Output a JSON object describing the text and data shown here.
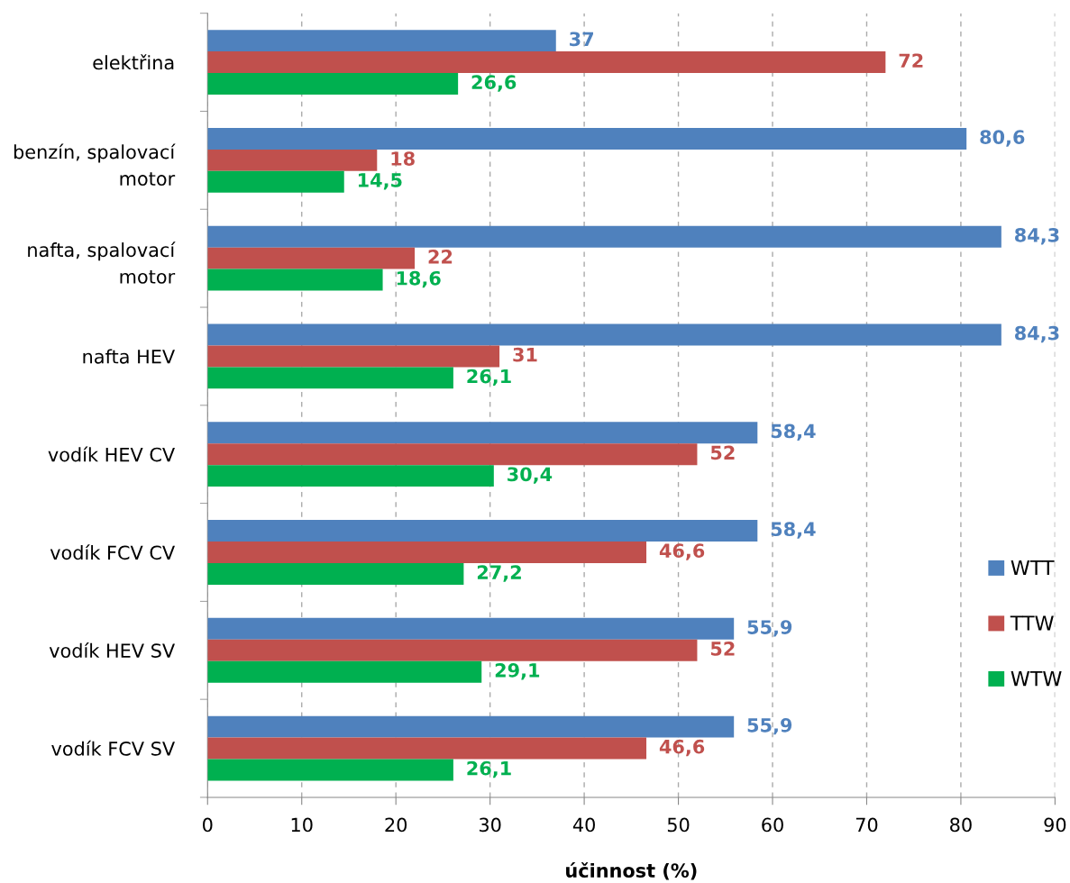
{
  "chart_data": {
    "type": "bar",
    "orientation": "horizontal",
    "xlabel": "účinnost (%)",
    "categories": [
      "elektřina",
      "benzín, spalovací\nmotor",
      "nafta, spalovací\nmotor",
      "nafta HEV",
      "vodík HEV CV",
      "vodík FCV CV",
      "vodík HEV SV",
      "vodík FCV SV"
    ],
    "series": [
      {
        "name": "WTT",
        "color": "#4f81bd",
        "values": [
          37,
          80.6,
          84.3,
          84.3,
          58.4,
          58.4,
          55.9,
          55.9
        ],
        "value_labels": [
          "37",
          "80,6",
          "84,3",
          "84,3",
          "58,4",
          "58,4",
          "55,9",
          "55,9"
        ]
      },
      {
        "name": "TTW",
        "color": "#c0504d",
        "values": [
          72,
          18,
          22,
          31,
          52,
          46.6,
          52,
          46.6
        ],
        "value_labels": [
          "72",
          "18",
          "22",
          "31",
          "52",
          "46,6",
          "52",
          "46,6"
        ]
      },
      {
        "name": "WTW",
        "color": "#00b050",
        "values": [
          26.6,
          14.5,
          18.6,
          26.1,
          30.4,
          27.2,
          29.1,
          26.1
        ],
        "value_labels": [
          "26,6",
          "14,5",
          "18,6",
          "26,1",
          "30,4",
          "27,2",
          "29,1",
          "26,1"
        ]
      }
    ],
    "xlim": [
      0,
      90
    ],
    "xticks": [
      0,
      10,
      20,
      30,
      40,
      50,
      60,
      70,
      80,
      90
    ],
    "grid": "x",
    "legend": "right"
  }
}
